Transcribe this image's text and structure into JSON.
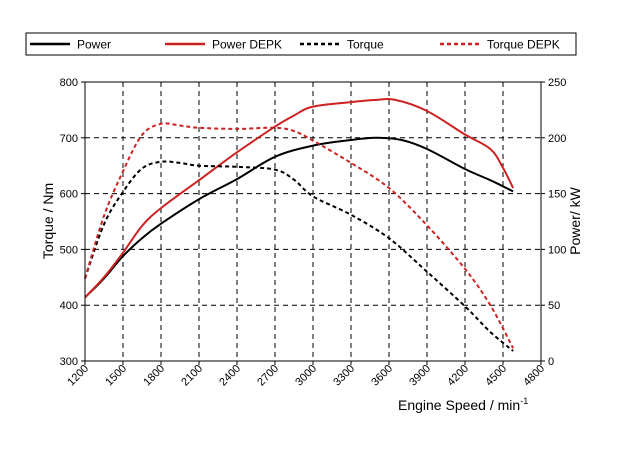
{
  "chart_data": {
    "type": "line",
    "title": "",
    "xlabel": "Engine Speed / min",
    "xlabel_superscript": "-1",
    "ylabel_left": "Torque / Nm",
    "ylabel_right": "Power/ kW",
    "xlim": [
      1200,
      4800
    ],
    "ylim_left": [
      300,
      800
    ],
    "ylim_right": [
      0,
      250
    ],
    "x_ticks": [
      1200,
      1500,
      1800,
      2100,
      2400,
      2700,
      3000,
      3300,
      3600,
      3900,
      4200,
      4500,
      4800
    ],
    "y_left_ticks": [
      300,
      400,
      500,
      600,
      700,
      800
    ],
    "y_right_ticks": [
      0,
      50,
      100,
      150,
      200,
      250
    ],
    "grid": true,
    "legend_position": "top",
    "series": [
      {
        "name": "Power",
        "axis": "right",
        "color": "#000000",
        "style": "solid",
        "x": [
          1200,
          1350,
          1500,
          1650,
          1800,
          2100,
          2400,
          2700,
          3000,
          3300,
          3500,
          3700,
          3900,
          4200,
          4400,
          4580
        ],
        "y": [
          57,
          74,
          94,
          110,
          123,
          145,
          163,
          183,
          193,
          198,
          200,
          198,
          190,
          172,
          162,
          152
        ]
      },
      {
        "name": "Power DEPK",
        "axis": "right",
        "color": "#cc2222",
        "style": "solid",
        "x": [
          1200,
          1350,
          1500,
          1650,
          1800,
          2100,
          2400,
          2700,
          2850,
          3000,
          3300,
          3500,
          3650,
          3900,
          4200,
          4400,
          4500,
          4580
        ],
        "y": [
          57,
          75,
          97,
          121,
          137,
          162,
          187,
          210,
          220,
          228,
          232,
          234,
          234,
          224,
          203,
          190,
          173,
          155
        ]
      },
      {
        "name": "Torque",
        "axis": "left",
        "color": "#000000",
        "style": "dashed",
        "x": [
          1200,
          1350,
          1500,
          1650,
          1800,
          1950,
          2100,
          2400,
          2700,
          2850,
          3000,
          3300,
          3600,
          3900,
          4200,
          4400,
          4580
        ],
        "y": [
          448,
          545,
          603,
          645,
          657,
          655,
          650,
          648,
          643,
          625,
          595,
          562,
          520,
          460,
          398,
          352,
          318
        ]
      },
      {
        "name": "Torque DEPK",
        "axis": "left",
        "color": "#cc2222",
        "style": "dashed",
        "x": [
          1200,
          1350,
          1500,
          1650,
          1800,
          1950,
          2100,
          2400,
          2700,
          2850,
          3000,
          3300,
          3600,
          3900,
          4200,
          4400,
          4580
        ],
        "y": [
          448,
          560,
          640,
          705,
          725,
          722,
          718,
          716,
          718,
          712,
          695,
          655,
          610,
          543,
          465,
          400,
          323
        ]
      }
    ]
  }
}
